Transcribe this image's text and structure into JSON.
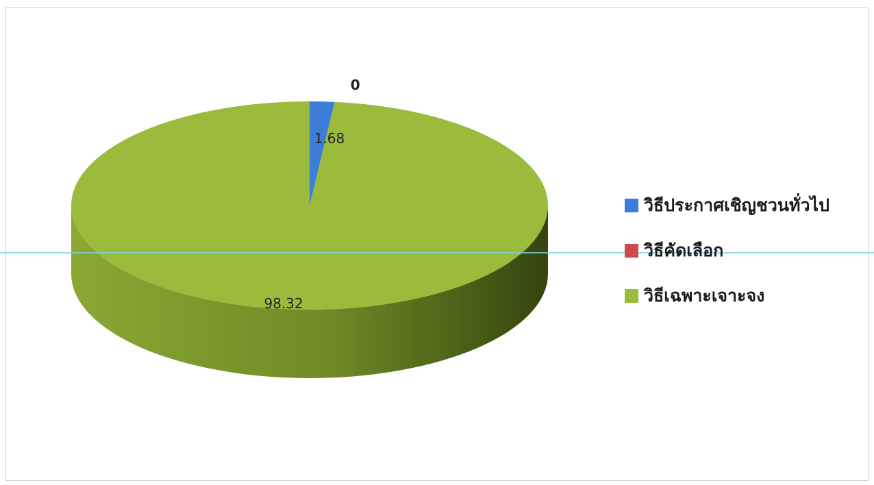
{
  "chart_data": {
    "type": "pie",
    "style": "3d",
    "categories": [
      "วิธีประกาศเชิญชวนทั่วไป",
      "วิธีคัดเลือก",
      "วิธีเฉพาะเจาะจง"
    ],
    "values": [
      1.68,
      0,
      98.32
    ],
    "data_labels": [
      "1.68",
      "0",
      "98.32"
    ],
    "colors": [
      "#3b7dd8",
      "#d04a48",
      "#9bbb3c"
    ],
    "legend_position": "right"
  }
}
